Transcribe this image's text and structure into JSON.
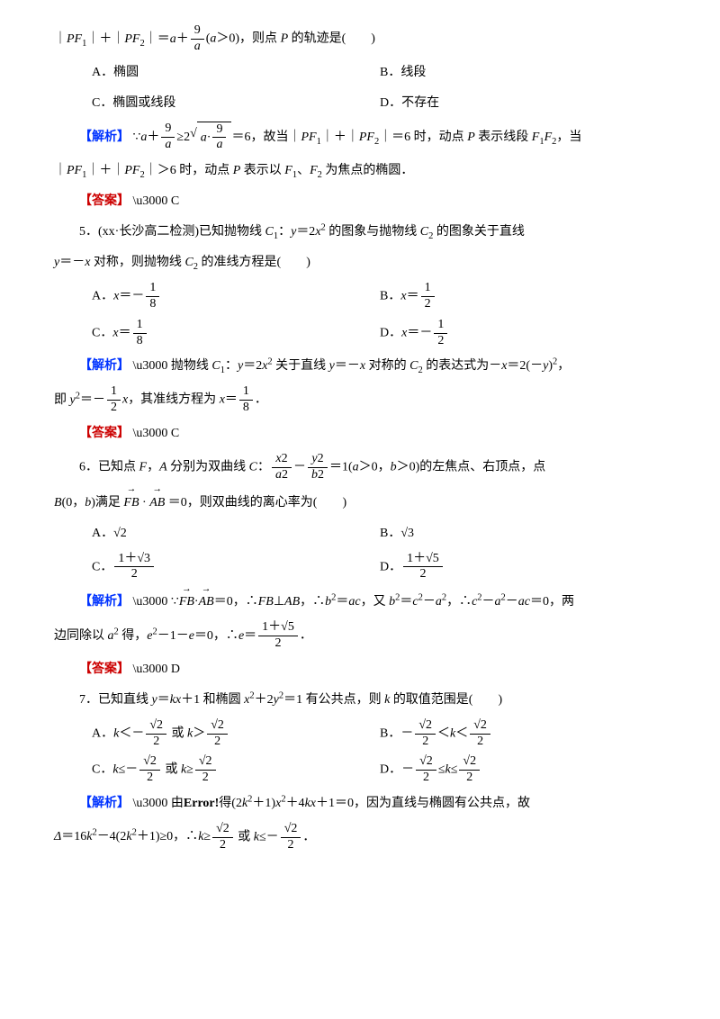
{
  "colors": {
    "blue": "#0033ff",
    "red": "#cc0000",
    "text": "#000000",
    "bg": "#ffffff"
  },
  "q4": {
    "stem1": "｜<i>PF</i><sub>1</sub>｜＋｜<i>PF</i><sub>2</sub>｜＝<i>a</i>＋",
    "stem_frac": {
      "num": "9",
      "den": "<i>a</i>"
    },
    "stem2": "(<i>a</i>＞0)，则点 <i>P</i> 的轨迹是(　　)",
    "A": "A．椭圆",
    "B": "B．线段",
    "C": "C．椭圆或线段",
    "D": "D．不存在",
    "jiexi_label": "【解析】",
    "jiexi_1": "∵<i>a</i>＋",
    "jiexi_frac1": {
      "num": "9",
      "den": "<i>a</i>"
    },
    "jiexi_2": "≥2",
    "jiexi_sqrt": "<i>a</i>·<span class='frac'><span class='num'>9</span><span class='den'><i>a</i></span></span>",
    "jiexi_3": "＝6，故当｜<i>PF</i><sub>1</sub>｜＋｜<i>PF</i><sub>2</sub>｜＝6 时，动点 <i>P</i> 表示线段 <i>F</i><sub>1</sub><i>F</i><sub>2</sub>，当",
    "jiexi_4": "｜<i>PF</i><sub>1</sub>｜＋｜<i>PF</i><sub>2</sub>｜＞6 时，动点 <i>P</i> 表示以 <i>F</i><sub>1</sub>、<i>F</i><sub>2</sub> 为焦点的椭圆．",
    "ans_label": "【答案】",
    "ans": "C"
  },
  "q5": {
    "stem1": "5．(xx·长沙高二检测)已知抛物线 <i>C</i><sub>1</sub>：<i>y</i>＝2<i>x</i><sup>2</sup> 的图象与抛物线 <i>C</i><sub>2</sub> 的图象关于直线",
    "stem2": "<i>y</i>＝－<i>x</i> 对称，则抛物线 <i>C</i><sub>2</sub> 的准线方程是(　　)",
    "A_pre": "A．<i>x</i>＝－",
    "A_frac": {
      "num": "1",
      "den": "8"
    },
    "B_pre": "B．<i>x</i>＝",
    "B_frac": {
      "num": "1",
      "den": "2"
    },
    "C_pre": "C．<i>x</i>＝",
    "C_frac": {
      "num": "1",
      "den": "8"
    },
    "D_pre": "D．<i>x</i>＝－",
    "D_frac": {
      "num": "1",
      "den": "2"
    },
    "jiexi_label": "【解析】",
    "jiexi_1": "抛物线 <i>C</i><sub>1</sub>：<i>y</i>＝2<i>x</i><sup>2</sup> 关于直线 <i>y</i>＝－<i>x</i> 对称的 <i>C</i><sub>2</sub> 的表达式为－<i>x</i>＝2(－<i>y</i>)<sup>2</sup>，",
    "jiexi_2a": "即 <i>y</i><sup>2</sup>＝－",
    "jiexi_frac_half": {
      "num": "1",
      "den": "2"
    },
    "jiexi_2b": "<i>x</i>，其准线方程为 <i>x</i>＝",
    "jiexi_frac_eighth": {
      "num": "1",
      "den": "8"
    },
    "jiexi_2c": "．",
    "ans_label": "【答案】",
    "ans": "C"
  },
  "q6": {
    "stem1": "6．已知点 <i>F</i>，<i>A</i> 分别为双曲线 <i>C</i>：",
    "frac1": {
      "num": "<i>x</i>2",
      "den": "<i>a</i>2"
    },
    "stem2": "－",
    "frac2": {
      "num": "<i>y</i>2",
      "den": "<i>b</i>2"
    },
    "stem3": "＝1(<i>a</i>＞0，<i>b</i>＞0)的左焦点、右顶点，点",
    "stem4a": "<i>B</i>(0，<i>b</i>)满足",
    "stem4b": "＝0，则双曲线的离心率为(　　)",
    "vec_FB": "<i>FB</i>",
    "vec_AB": "<i>AB</i>",
    "dot": "·",
    "A": "A．√2",
    "B": "B．√3",
    "C_pre": "C．",
    "C_frac": {
      "num": "1＋√3",
      "den": "2"
    },
    "D_pre": "D．",
    "D_frac": {
      "num": "1＋√5",
      "den": "2"
    },
    "jiexi_label": "【解析】",
    "jiexi_1a": "∵",
    "jiexi_1b": "＝0，∴<i>FB</i>⊥<i>AB</i>，∴<i>b</i><sup>2</sup>＝<i>ac</i>，又 <i>b</i><sup>2</sup>＝<i>c</i><sup>2</sup>－<i>a</i><sup>2</sup>，∴<i>c</i><sup>2</sup>－<i>a</i><sup>2</sup>－<i>ac</i>＝0，两",
    "jiexi_2a": "边同除以 <i>a</i><sup>2</sup> 得，<i>e</i><sup>2</sup>－1－<i>e</i>＝0，∴<i>e</i>＝",
    "jiexi_frac": {
      "num": "1＋√5",
      "den": "2"
    },
    "jiexi_2b": "．",
    "ans_label": "【答案】",
    "ans": "D"
  },
  "q7": {
    "stem": "7．已知直线 <i>y</i>＝<i>kx</i>＋1 和椭圆 <i>x</i><sup>2</sup>＋2<i>y</i><sup>2</sup>＝1 有公共点，则 <i>k</i> 的取值范围是(　　)",
    "frac_s22": {
      "num": "√2",
      "den": "2"
    },
    "A_pre": "A．<i>k</i>＜－",
    "A_mid": " 或 <i>k</i>＞",
    "B_pre": "B．－",
    "B_mid": "＜<i>k</i>＜",
    "C_pre": "C．<i>k</i>≤－",
    "C_mid": " 或 <i>k</i>≥",
    "D_pre": "D．－",
    "D_mid": "≤<i>k</i>≤",
    "jiexi_label": "【解析】",
    "jiexi_1": "由<b>Error!</b>得(2<i>k</i><sup>2</sup>＋1)<i>x</i><sup>2</sup>＋4<i>kx</i>＋1＝0，因为直线与椭圆有公共点，故",
    "jiexi_2a": "<i>Δ</i>＝16<i>k</i><sup>2</sup>－4(2<i>k</i><sup>2</sup>＋1)≥0，∴<i>k</i>≥",
    "jiexi_2b": " 或 <i>k</i>≤－",
    "jiexi_2c": "．"
  }
}
